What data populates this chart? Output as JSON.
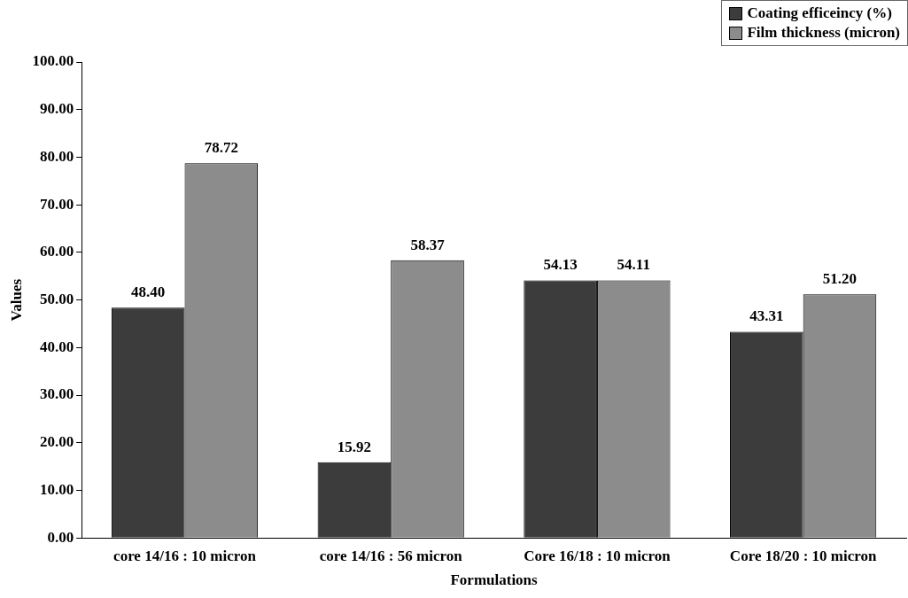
{
  "chart_data": {
    "type": "bar",
    "xlabel": "Formulations",
    "ylabel": "Values",
    "categories": [
      "core 14/16 : 10 micron",
      "core 14/16 : 56 micron",
      "Core 16/18 : 10 micron",
      "Core 18/20 : 10 micron"
    ],
    "series": [
      {
        "name": "Coating efficeincy (%)",
        "color": "#3c3c3c",
        "values": [
          48.4,
          15.92,
          54.13,
          43.31
        ],
        "value_labels": [
          "48.40",
          "15.92",
          "54.13",
          "43.31"
        ]
      },
      {
        "name": "Film thickness (micron)",
        "color": "#8c8c8c",
        "values": [
          78.72,
          58.37,
          54.11,
          51.2
        ],
        "value_labels": [
          "78.72",
          "58.37",
          "54.11",
          "51.20"
        ]
      }
    ],
    "ylim": [
      0,
      100
    ],
    "yticks": [
      {
        "value": 0,
        "label": "0.00"
      },
      {
        "value": 10,
        "label": "10.00"
      },
      {
        "value": 20,
        "label": "20.00"
      },
      {
        "value": 30,
        "label": "30.00"
      },
      {
        "value": 40,
        "label": "40.00"
      },
      {
        "value": 50,
        "label": "50.00"
      },
      {
        "value": 60,
        "label": "60.00"
      },
      {
        "value": 70,
        "label": "70.00"
      },
      {
        "value": 80,
        "label": "80.00"
      },
      {
        "value": 90,
        "label": "90.00"
      },
      {
        "value": 100,
        "label": "100.00"
      }
    ],
    "grid": false,
    "legend": "top right"
  }
}
